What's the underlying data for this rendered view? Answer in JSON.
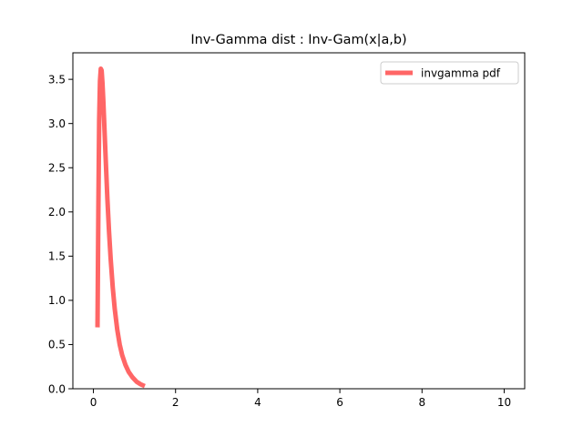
{
  "chart_data": {
    "type": "line",
    "title": "Inv-Gamma dist : Inv-Gam(x|a,b)",
    "xlabel": "",
    "ylabel": "",
    "xlim": [
      -0.5,
      10.5
    ],
    "ylim": [
      0.0,
      3.8
    ],
    "x_ticks": [
      0,
      2,
      4,
      6,
      8,
      10
    ],
    "x_tick_labels": [
      "0",
      "2",
      "4",
      "6",
      "8",
      "10"
    ],
    "y_ticks": [
      0.0,
      0.5,
      1.0,
      1.5,
      2.0,
      2.5,
      3.0,
      3.5
    ],
    "y_tick_labels": [
      "0.0",
      "0.5",
      "1.0",
      "1.5",
      "2.0",
      "2.5",
      "3.0",
      "3.5"
    ],
    "grid": false,
    "legend_position": "top-right",
    "series": [
      {
        "name": "invgamma pdf",
        "color": "#ff6666",
        "x": [
          0.1,
          0.12,
          0.14,
          0.16,
          0.18,
          0.2,
          0.22,
          0.24,
          0.27,
          0.3,
          0.34,
          0.38,
          0.42,
          0.47,
          0.52,
          0.58,
          0.64,
          0.7,
          0.78,
          0.86,
          0.95,
          1.05,
          1.15,
          1.2
        ],
        "y": [
          0.72,
          2.0,
          3.04,
          3.48,
          3.62,
          3.6,
          3.46,
          3.27,
          2.93,
          2.59,
          2.15,
          1.78,
          1.47,
          1.15,
          0.9,
          0.67,
          0.5,
          0.38,
          0.27,
          0.19,
          0.13,
          0.08,
          0.05,
          0.04
        ]
      }
    ]
  }
}
